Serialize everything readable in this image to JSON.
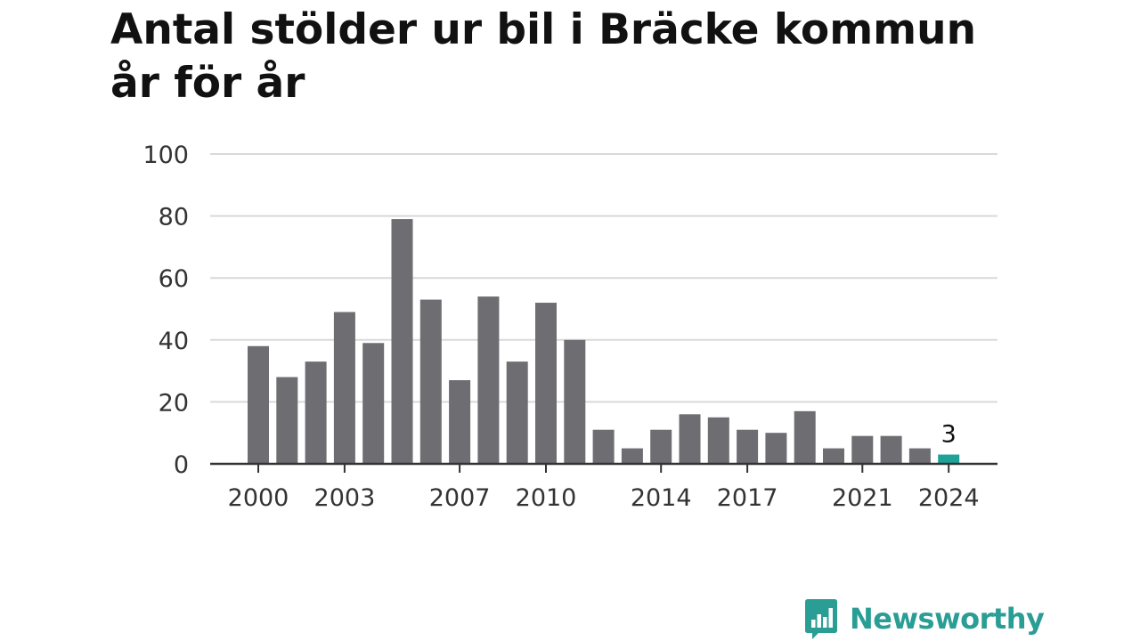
{
  "chart_data": {
    "type": "bar",
    "title": "Antal stölder ur bil i Bräcke kommun år för år",
    "xlabel": "",
    "ylabel": "",
    "ylim": [
      0,
      100
    ],
    "yticks": [
      0,
      20,
      40,
      60,
      80,
      100
    ],
    "xtick_labels": [
      "2000",
      "2003",
      "2007",
      "2010",
      "2014",
      "2017",
      "2021",
      "2024"
    ],
    "categories": [
      "2000",
      "2001",
      "2002",
      "2003",
      "2004",
      "2005",
      "2006",
      "2007",
      "2008",
      "2009",
      "2010",
      "2011",
      "2012",
      "2013",
      "2014",
      "2015",
      "2016",
      "2017",
      "2018",
      "2019",
      "2020",
      "2021",
      "2022",
      "2023",
      "2024"
    ],
    "values": [
      38,
      28,
      33,
      49,
      39,
      79,
      53,
      27,
      54,
      33,
      52,
      40,
      11,
      5,
      11,
      16,
      15,
      11,
      10,
      17,
      5,
      9,
      9,
      5,
      3
    ],
    "highlight_index": 24,
    "highlight_label": "3",
    "colors": {
      "bar": "#6e6d72",
      "highlight": "#1fa398",
      "grid": "#d9d9d9",
      "axis": "#333333"
    },
    "grid": true,
    "legend": "none"
  },
  "logo": {
    "text": "Newsworthy",
    "icon": "newsworthy-chart-bubble-icon",
    "color": "#2a9d95"
  }
}
